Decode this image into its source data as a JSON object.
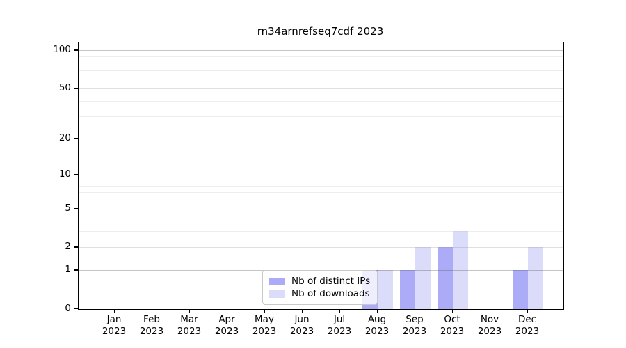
{
  "title": "rn34arnrefseq7cdf 2023",
  "legend": {
    "items": [
      {
        "label": "Nb of distinct IPs"
      },
      {
        "label": "Nb of downloads"
      }
    ]
  },
  "colors": {
    "distinct_ips_bar": "#ababf8",
    "downloads_bar": "#dbdcfa",
    "spine": "#000000",
    "background": "#ffffff"
  },
  "chart_data": {
    "type": "bar",
    "title": "rn34arnrefseq7cdf 2023",
    "categories": [
      "Jan 2023",
      "Feb 2023",
      "Mar 2023",
      "Apr 2023",
      "May 2023",
      "Jun 2023",
      "Jul 2023",
      "Aug 2023",
      "Sep 2023",
      "Oct 2023",
      "Nov 2023",
      "Dec 2023"
    ],
    "series": [
      {
        "name": "Nb of distinct IPs",
        "color": "#ababf8",
        "values": [
          0,
          0,
          0,
          0,
          0,
          0,
          0,
          1,
          1,
          2,
          0,
          1
        ]
      },
      {
        "name": "Nb of downloads",
        "color": "#dbdcfa",
        "values": [
          0,
          0,
          0,
          0,
          0,
          0,
          0,
          1,
          2,
          3,
          0,
          2
        ]
      }
    ],
    "xlabel": "",
    "ylabel": "",
    "yscale": "log1p",
    "ylim": [
      0,
      115
    ],
    "yticks": [
      0,
      1,
      2,
      5,
      10,
      20,
      50,
      100
    ],
    "minor_ticks": [
      3,
      4,
      6,
      7,
      8,
      9,
      30,
      40,
      60,
      70,
      80,
      90
    ],
    "grid": true,
    "legend_position": "inside-bottom-center"
  }
}
